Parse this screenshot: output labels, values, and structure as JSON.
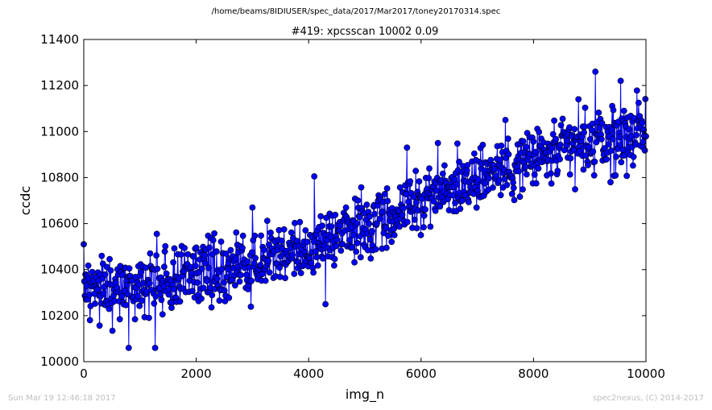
{
  "figure": {
    "suptitle": "/home/beams/8IDIUSER/spec_data/2017/Mar2017/toney20170314.spec",
    "timestamp": "Sun Mar 19 12:46:18 2017",
    "credit": "spec2nexus, (C) 2014-2017"
  },
  "colors": {
    "series": "#0000ff",
    "marker_edge": "#000000",
    "axes": "#000000",
    "background": "#ffffff",
    "footer_text": "#bfbfbf"
  },
  "chart_data": {
    "type": "line",
    "markers": "circle",
    "title": "#419: xpcsscan 10002 0.09",
    "xlabel": "img_n",
    "ylabel": "ccdc",
    "xlim": [
      0,
      10000
    ],
    "ylim": [
      10000,
      11400
    ],
    "xticks": [
      "0",
      "2000",
      "4000",
      "6000",
      "8000",
      "10000"
    ],
    "yticks": [
      "10000",
      "10200",
      "10400",
      "10600",
      "10800",
      "11000",
      "11200",
      "11400"
    ],
    "grid": false,
    "legend": "none",
    "trend": {
      "x": [
        0,
        1000,
        2000,
        3000,
        4000,
        5000,
        6000,
        7000,
        8000,
        9000,
        10000
      ],
      "y": [
        10310,
        10330,
        10380,
        10430,
        10490,
        10590,
        10700,
        10810,
        10880,
        10940,
        11000
      ]
    },
    "spread": 70,
    "n_points": 1000,
    "notable_points": {
      "x": [
        0,
        320,
        800,
        1270,
        1300,
        3000,
        4100,
        4300,
        5750,
        6300,
        7500,
        8800,
        9100,
        9550,
        9700
      ],
      "y": [
        10510,
        10460,
        10060,
        10060,
        10555,
        10670,
        10805,
        10250,
        10930,
        10950,
        11050,
        11140,
        11260,
        11220,
        11010
      ]
    }
  }
}
